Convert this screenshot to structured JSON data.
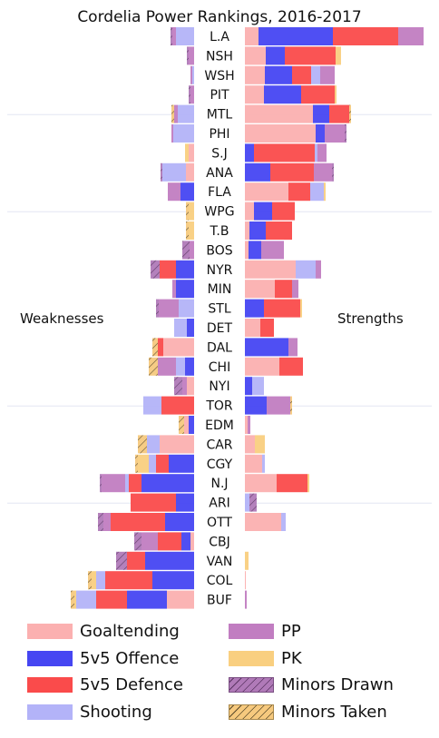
{
  "chart_data": {
    "type": "bar",
    "title": "Cordelia Power Rankings, 2016-2017",
    "left_label": "Weaknesses",
    "right_label": "Strengths",
    "teams": [
      "L.A",
      "NSH",
      "WSH",
      "PIT",
      "MTL",
      "PHI",
      "S.J",
      "ANA",
      "FLA",
      "WPG",
      "T.B",
      "BOS",
      "NYR",
      "MIN",
      "STL",
      "DET",
      "DAL",
      "CHI",
      "NYI",
      "TOR",
      "EDM",
      "CAR",
      "CGY",
      "N.J",
      "ARI",
      "OTT",
      "CBJ",
      "VAN",
      "COL",
      "BUF"
    ],
    "categories": [
      "Goaltending",
      "5v5 Offence",
      "5v5 Defence",
      "Shooting",
      "PP",
      "PK",
      "Minors Drawn",
      "Minors Taken"
    ],
    "colors": {
      "Goaltending": "#fbb0b0",
      "5v5 Offence": "#4646f2",
      "5v5 Defence": "#fa4b4b",
      "Shooting": "#b3b3f8",
      "PP": "#c17dc1",
      "PK": "#f9cf80",
      "Minors Drawn": "#b07ab8",
      "Minors Taken": "#f6c97e"
    },
    "strengths": [
      [
        [
          "Goaltending",
          15
        ],
        [
          "5v5 Offence",
          82
        ],
        [
          "5v5 Defence",
          72
        ],
        [
          "PP",
          28
        ]
      ],
      [
        [
          "Goaltending",
          23
        ],
        [
          "5v5 Offence",
          21
        ],
        [
          "5v5 Defence",
          56
        ],
        [
          "PK",
          6
        ]
      ],
      [
        [
          "Goaltending",
          22
        ],
        [
          "5v5 Offence",
          30
        ],
        [
          "5v5 Defence",
          21
        ],
        [
          "Shooting",
          10
        ],
        [
          "PP",
          16
        ]
      ],
      [
        [
          "Goaltending",
          21
        ],
        [
          "5v5 Offence",
          41
        ],
        [
          "5v5 Defence",
          37
        ],
        [
          "PK",
          2
        ]
      ],
      [
        [
          "Goaltending",
          75
        ],
        [
          "5v5 Offence",
          18
        ],
        [
          "5v5 Defence",
          22
        ],
        [
          "Minors Taken",
          2
        ]
      ],
      [
        [
          "Goaltending",
          78
        ],
        [
          "5v5 Offence",
          10
        ],
        [
          "PP",
          22
        ],
        [
          "Minors Drawn",
          2
        ]
      ],
      [
        [
          "5v5 Offence",
          10
        ],
        [
          "5v5 Defence",
          67
        ],
        [
          "Shooting",
          3
        ],
        [
          "PP",
          10
        ]
      ],
      [
        [
          "5v5 Offence",
          28
        ],
        [
          "5v5 Defence",
          48
        ],
        [
          "PP",
          20
        ],
        [
          "Minors Drawn",
          2
        ]
      ],
      [
        [
          "Goaltending",
          48
        ],
        [
          "5v5 Defence",
          24
        ],
        [
          "Shooting",
          15
        ],
        [
          "PK",
          2
        ]
      ],
      [
        [
          "Goaltending",
          10
        ],
        [
          "5v5 Offence",
          20
        ],
        [
          "5v5 Defence",
          25
        ]
      ],
      [
        [
          "Goaltending",
          5
        ],
        [
          "5v5 Offence",
          18
        ],
        [
          "5v5 Defence",
          29
        ]
      ],
      [
        [
          "Goaltending",
          4
        ],
        [
          "5v5 Offence",
          14
        ],
        [
          "PP",
          25
        ]
      ],
      [
        [
          "Goaltending",
          56
        ],
        [
          "Shooting",
          22
        ],
        [
          "PP",
          6
        ]
      ],
      [
        [
          "Goaltending",
          33
        ],
        [
          "5v5 Defence",
          19
        ],
        [
          "PP",
          7
        ]
      ],
      [
        [
          "5v5 Offence",
          21
        ],
        [
          "5v5 Defence",
          40
        ],
        [
          "PK",
          2
        ]
      ],
      [
        [
          "Goaltending",
          17
        ],
        [
          "5v5 Defence",
          15
        ]
      ],
      [
        [
          "5v5 Offence",
          48
        ],
        [
          "PP",
          10
        ]
      ],
      [
        [
          "Goaltending",
          38
        ],
        [
          "5v5 Defence",
          26
        ]
      ],
      [
        [
          "5v5 Offence",
          8
        ],
        [
          "Shooting",
          13
        ]
      ],
      [
        [
          "5v5 Offence",
          24
        ],
        [
          "PP",
          26
        ],
        [
          "Minors Taken",
          2
        ]
      ],
      [
        [
          "Goaltending",
          3
        ],
        [
          "PP",
          3
        ]
      ],
      [
        [
          "Goaltending",
          11
        ],
        [
          "PK",
          11
        ]
      ],
      [
        [
          "Goaltending",
          19
        ],
        [
          "Shooting",
          3
        ]
      ],
      [
        [
          "Goaltending",
          35
        ],
        [
          "5v5 Defence",
          34
        ],
        [
          "PK",
          2
        ]
      ],
      [
        [
          "Shooting",
          5
        ],
        [
          "Minors Drawn",
          8
        ]
      ],
      [
        [
          "Goaltending",
          40
        ],
        [
          "Shooting",
          5
        ]
      ],
      [],
      [
        [
          "PK",
          4
        ]
      ],
      [
        [
          "Goaltending",
          1
        ]
      ],
      [
        [
          "PP",
          2
        ]
      ]
    ],
    "weaknesses": [
      [
        [
          "Shooting",
          20
        ],
        [
          "PP",
          4
        ],
        [
          "Minors Drawn",
          2
        ]
      ],
      [
        [
          "PP",
          6
        ],
        [
          "Minors Drawn",
          2
        ]
      ],
      [
        [
          "Shooting",
          2
        ],
        [
          "PP",
          2
        ]
      ],
      [
        [
          "PP",
          4
        ],
        [
          "Minors Drawn",
          2
        ]
      ],
      [
        [
          "Shooting",
          18
        ],
        [
          "PP",
          4
        ],
        [
          "Minors Taken",
          3
        ]
      ],
      [
        [
          "Shooting",
          23
        ],
        [
          "PP",
          2
        ]
      ],
      [
        [
          "Goaltending",
          6
        ],
        [
          "PK",
          4
        ]
      ],
      [
        [
          "Goaltending",
          9
        ],
        [
          "Shooting",
          26
        ],
        [
          "Minors Drawn",
          2
        ]
      ],
      [
        [
          "5v5 Offence",
          15
        ],
        [
          "PP",
          14
        ]
      ],
      [
        [
          "PK",
          6
        ],
        [
          "Minors Taken",
          3
        ]
      ],
      [
        [
          "PK",
          6
        ],
        [
          "Minors Taken",
          3
        ]
      ],
      [
        [
          "PP",
          5
        ],
        [
          "Minors Drawn",
          8
        ]
      ],
      [
        [
          "5v5 Offence",
          20
        ],
        [
          "5v5 Defence",
          18
        ],
        [
          "Minors Drawn",
          10
        ]
      ],
      [
        [
          "5v5 Offence",
          20
        ],
        [
          "PP",
          4
        ]
      ],
      [
        [
          "Shooting",
          17
        ],
        [
          "PP",
          22
        ],
        [
          "Minors Drawn",
          3
        ]
      ],
      [
        [
          "5v5 Offence",
          8
        ],
        [
          "Shooting",
          14
        ]
      ],
      [
        [
          "Goaltending",
          34
        ],
        [
          "5v5 Defence",
          6
        ],
        [
          "Minors Taken",
          6
        ]
      ],
      [
        [
          "5v5 Offence",
          10
        ],
        [
          "Shooting",
          10
        ],
        [
          "PP",
          20
        ],
        [
          "Minors Taken",
          10
        ]
      ],
      [
        [
          "Goaltending",
          8
        ],
        [
          "PP",
          5
        ],
        [
          "Minors Drawn",
          9
        ]
      ],
      [
        [
          "5v5 Defence",
          36
        ],
        [
          "Shooting",
          20
        ]
      ],
      [
        [
          "5v5 Offence",
          6
        ],
        [
          "Goaltending",
          5
        ],
        [
          "Minors Taken",
          6
        ]
      ],
      [
        [
          "Goaltending",
          38
        ],
        [
          "Shooting",
          14
        ],
        [
          "Minors Taken",
          10
        ]
      ],
      [
        [
          "5v5 Offence",
          28
        ],
        [
          "5v5 Defence",
          14
        ],
        [
          "Shooting",
          8
        ],
        [
          "PK",
          12
        ],
        [
          "Minors Taken",
          3
        ]
      ],
      [
        [
          "5v5 Offence",
          58
        ],
        [
          "5v5 Defence",
          14
        ],
        [
          "Shooting",
          4
        ],
        [
          "PP",
          26
        ],
        [
          "Minors Drawn",
          2
        ]
      ],
      [
        [
          "5v5 Offence",
          20
        ],
        [
          "5v5 Defence",
          50
        ]
      ],
      [
        [
          "5v5 Offence",
          32
        ],
        [
          "5v5 Defence",
          60
        ],
        [
          "PP",
          8
        ],
        [
          "Minors Drawn",
          6
        ]
      ],
      [
        [
          "Goaltending",
          4
        ],
        [
          "5v5 Offence",
          10
        ],
        [
          "5v5 Defence",
          26
        ],
        [
          "PP",
          18
        ],
        [
          "Minors Drawn",
          8
        ]
      ],
      [
        [
          "5v5 Offence",
          54
        ],
        [
          "5v5 Defence",
          20
        ],
        [
          "Minors Drawn",
          12
        ]
      ],
      [
        [
          "5v5 Offence",
          46
        ],
        [
          "5v5 Defence",
          52
        ],
        [
          "Shooting",
          10
        ],
        [
          "PK",
          5
        ],
        [
          "Minors Taken",
          4
        ]
      ],
      [
        [
          "Goaltending",
          30
        ],
        [
          "5v5 Offence",
          44
        ],
        [
          "5v5 Defence",
          34
        ],
        [
          "Shooting",
          22
        ],
        [
          "PK",
          2
        ],
        [
          "Minors Taken",
          4
        ]
      ]
    ],
    "legend": [
      "Goaltending",
      "PP",
      "5v5 Offence",
      "PK",
      "5v5 Defence",
      "Minors Drawn",
      "Shooting",
      "Minors Taken"
    ]
  }
}
